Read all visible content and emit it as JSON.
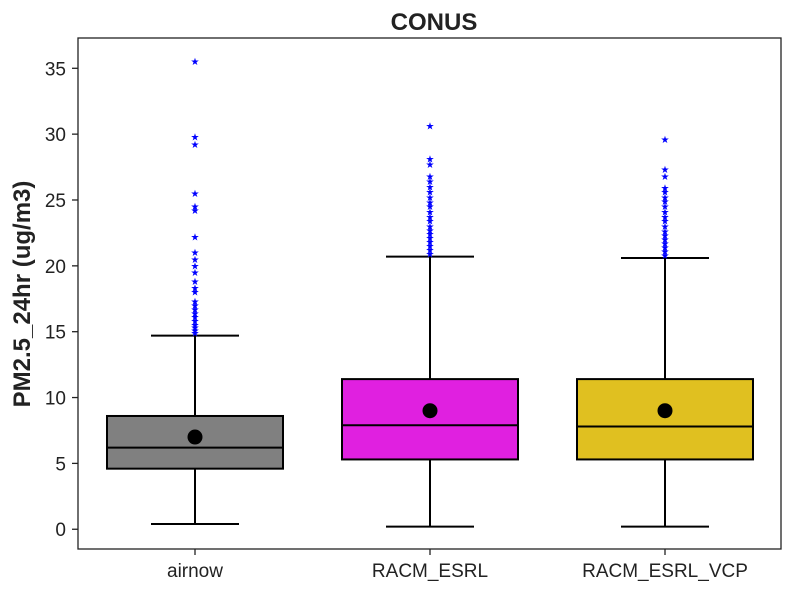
{
  "chart_data": {
    "type": "box",
    "title": "CONUS",
    "ylabel": "PM2.5_24hr (ug/m3)",
    "xlabel": "",
    "ylim": [
      -1.5,
      37.3
    ],
    "yticks": [
      0,
      5,
      10,
      15,
      20,
      25,
      30,
      35
    ],
    "grid": false,
    "categories": [
      "airnow",
      "RACM_ESRL",
      "RACM_ESRL_VCP"
    ],
    "series": [
      {
        "category": "airnow",
        "color": "#808080",
        "whisker_low": 0.4,
        "q1": 4.6,
        "median": 6.2,
        "q3": 8.6,
        "whisker_high": 14.7,
        "mean": 7.0,
        "outliers": [
          35.5,
          29.8,
          29.2,
          25.5,
          24.5,
          24.2,
          22.2,
          21.0,
          20.5,
          20.0,
          19.5,
          18.8,
          18.3,
          18.0,
          17.3,
          17.0,
          16.7,
          16.4,
          16.1,
          15.8,
          15.5,
          15.3,
          15.1,
          14.9
        ]
      },
      {
        "category": "RACM_ESRL",
        "color": "#e020e0",
        "whisker_low": 0.2,
        "q1": 5.3,
        "median": 7.9,
        "q3": 11.4,
        "whisker_high": 20.7,
        "mean": 9.0,
        "outliers": [
          30.6,
          28.1,
          27.7,
          26.8,
          26.4,
          26.0,
          25.6,
          25.2,
          24.8,
          24.5,
          24.1,
          23.7,
          23.4,
          23.0,
          22.7,
          22.4,
          22.1,
          21.8,
          21.5,
          21.2,
          20.9
        ]
      },
      {
        "category": "RACM_ESRL_VCP",
        "color": "#e0c020",
        "whisker_low": 0.2,
        "q1": 5.3,
        "median": 7.8,
        "q3": 11.4,
        "whisker_high": 20.6,
        "mean": 9.0,
        "outliers": [
          29.6,
          27.3,
          26.8,
          25.9,
          25.6,
          25.2,
          24.9,
          24.5,
          24.1,
          23.7,
          23.4,
          23.0,
          22.6,
          22.3,
          22.0,
          21.7,
          21.4,
          21.1,
          20.8
        ]
      }
    ],
    "outlier_color": "#0000ff",
    "mean_color": "#000000"
  }
}
